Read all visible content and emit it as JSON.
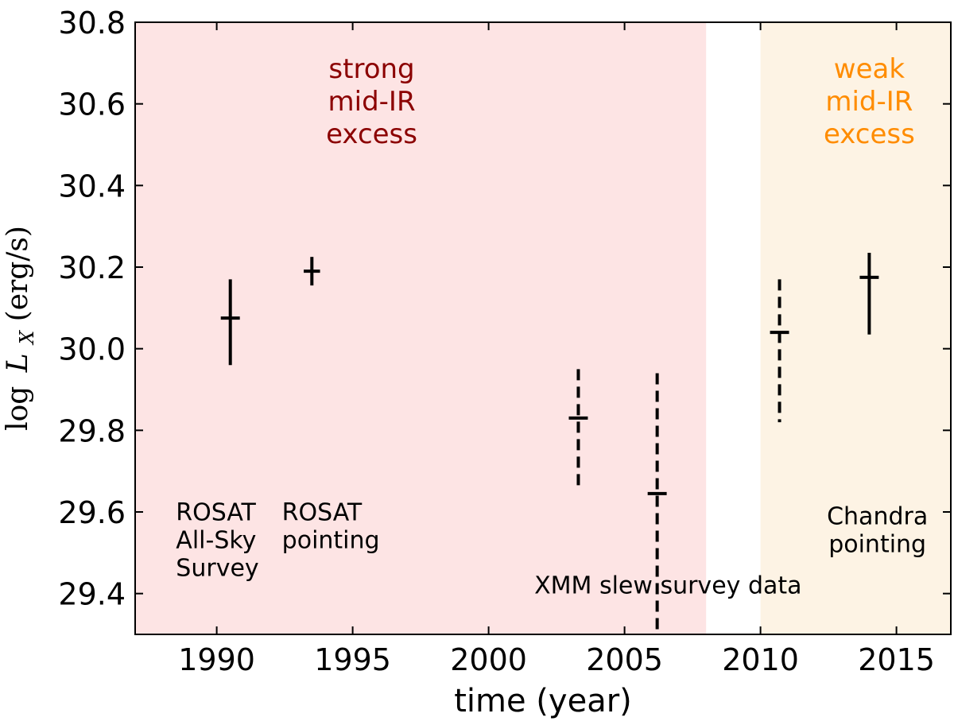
{
  "chart_data": {
    "type": "scatter",
    "xlabel": "time (year)",
    "ylabel": "log L_X (erg/s)",
    "ylabel_parts": {
      "log": "log",
      "L": "L",
      "sub": "X",
      "unit": " (erg/s)"
    },
    "xlim": [
      1987,
      2017
    ],
    "ylim": [
      29.3,
      30.8
    ],
    "xticks": [
      1990,
      1995,
      2000,
      2005,
      2010,
      2015
    ],
    "yticks": [
      29.4,
      29.6,
      29.8,
      30.0,
      30.2,
      30.4,
      30.6,
      30.8
    ],
    "ytick_labels": [
      "29.4",
      "29.6",
      "29.8",
      "30.0",
      "30.2",
      "30.4",
      "30.6",
      "30.8"
    ],
    "bands": [
      {
        "name": "strong-ir",
        "x0": 1987,
        "x1": 2008,
        "color": "#fde4e4",
        "label_color": "#8b0000",
        "label_lines": [
          "strong",
          "mid-IR",
          "excess"
        ],
        "label_x": 1995.7
      },
      {
        "name": "weak-ir",
        "x0": 2010,
        "x1": 2017,
        "color": "#fdf3e4",
        "label_color": "#ff8c00",
        "label_lines": [
          "weak",
          "mid-IR",
          "excess"
        ],
        "label_x": 2014.0
      }
    ],
    "points": [
      {
        "x": 1990.5,
        "y": 30.075,
        "ylo": 29.96,
        "yhi": 30.17,
        "xerr": 0.35,
        "style": "solid"
      },
      {
        "x": 1993.5,
        "y": 30.19,
        "ylo": 30.155,
        "yhi": 30.225,
        "xerr": 0.3,
        "style": "solid"
      },
      {
        "x": 2003.3,
        "y": 29.83,
        "ylo": 29.65,
        "yhi": 29.95,
        "xerr": 0.35,
        "style": "dashed"
      },
      {
        "x": 2006.2,
        "y": 29.645,
        "ylo": 29.3,
        "yhi": 29.94,
        "xerr": 0.35,
        "style": "dashed"
      },
      {
        "x": 2010.7,
        "y": 30.04,
        "ylo": 29.82,
        "yhi": 30.17,
        "xerr": 0.35,
        "style": "dashed"
      },
      {
        "x": 2014.0,
        "y": 30.175,
        "ylo": 30.035,
        "yhi": 30.235,
        "xerr": 0.35,
        "style": "solid"
      }
    ],
    "annotations": [
      {
        "lines": [
          "ROSAT",
          "All-Sky",
          "Survey"
        ],
        "x": 1988.5,
        "y": 29.58,
        "anchor": "start"
      },
      {
        "lines": [
          "ROSAT",
          "pointing"
        ],
        "x": 1992.4,
        "y": 29.58,
        "anchor": "start"
      },
      {
        "lines": [
          "XMM slew survey data"
        ],
        "x": 2006.6,
        "y": 29.4,
        "anchor": "middle"
      },
      {
        "lines": [
          "Chandra",
          "pointing"
        ],
        "x": 2014.3,
        "y": 29.57,
        "anchor": "middle"
      }
    ]
  }
}
